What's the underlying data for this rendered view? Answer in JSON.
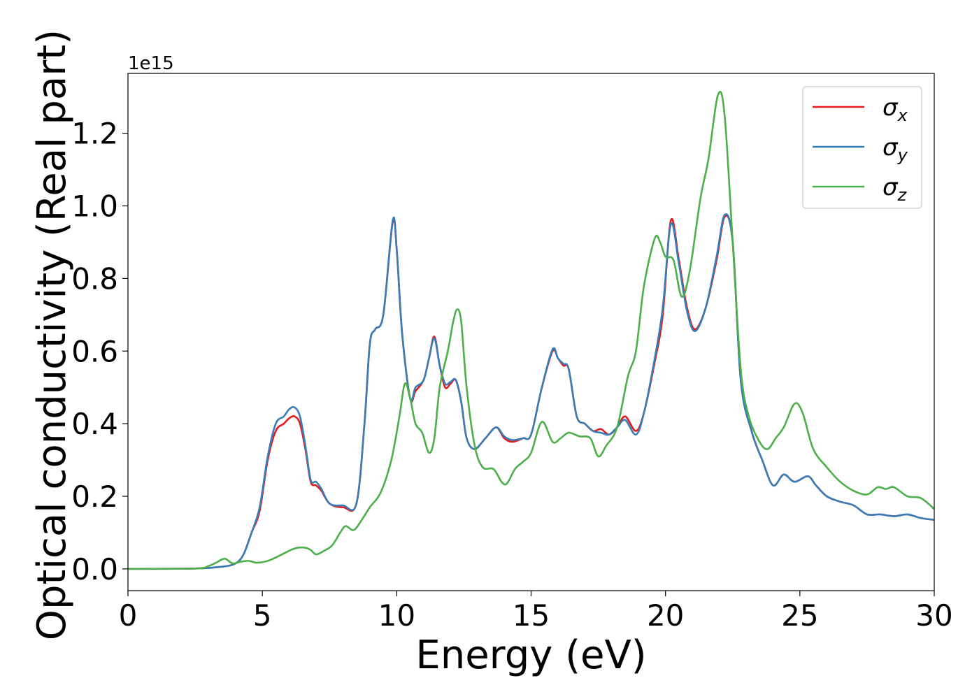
{
  "chart_data": {
    "type": "line",
    "xlabel": "Energy (eV)",
    "ylabel": "Optical conductivity (Real part)",
    "y_offset_label": "1e15",
    "xlim": [
      0,
      30
    ],
    "ylim": [
      -0.06,
      1.365
    ],
    "y_scale_factor": 1000000000000000.0,
    "xticks": [
      0,
      5,
      10,
      15,
      20,
      25,
      30
    ],
    "xtick_labels": [
      "0",
      "5",
      "10",
      "15",
      "20",
      "25",
      "30"
    ],
    "yticks": [
      0.0,
      0.2,
      0.4,
      0.6,
      0.8,
      1.0,
      1.2
    ],
    "ytick_labels": [
      "0.0",
      "0.2",
      "0.4",
      "0.6",
      "0.8",
      "1.0",
      "1.2"
    ],
    "grid": false,
    "legend_position": "top-right",
    "series": [
      {
        "name": "σx",
        "symbol": "σ",
        "subscript": "x",
        "color": "#e41a1c",
        "points": [
          [
            0,
            0
          ],
          [
            2.5,
            0.001
          ],
          [
            3.5,
            0.006
          ],
          [
            4.0,
            0.015
          ],
          [
            4.3,
            0.04
          ],
          [
            4.6,
            0.1
          ],
          [
            4.9,
            0.16
          ],
          [
            5.2,
            0.3
          ],
          [
            5.5,
            0.38
          ],
          [
            5.8,
            0.4
          ],
          [
            6.0,
            0.415
          ],
          [
            6.2,
            0.42
          ],
          [
            6.4,
            0.4
          ],
          [
            6.6,
            0.33
          ],
          [
            6.8,
            0.24
          ],
          [
            7.0,
            0.23
          ],
          [
            7.2,
            0.215
          ],
          [
            7.5,
            0.18
          ],
          [
            8.0,
            0.17
          ],
          [
            8.5,
            0.18
          ],
          [
            8.8,
            0.4
          ],
          [
            9.0,
            0.62
          ],
          [
            9.2,
            0.66
          ],
          [
            9.5,
            0.7
          ],
          [
            9.85,
            0.955
          ],
          [
            10.0,
            0.88
          ],
          [
            10.2,
            0.65
          ],
          [
            10.5,
            0.47
          ],
          [
            10.7,
            0.49
          ],
          [
            11.0,
            0.52
          ],
          [
            11.2,
            0.58
          ],
          [
            11.4,
            0.64
          ],
          [
            11.6,
            0.56
          ],
          [
            11.8,
            0.5
          ],
          [
            12.0,
            0.51
          ],
          [
            12.2,
            0.52
          ],
          [
            12.4,
            0.46
          ],
          [
            12.6,
            0.36
          ],
          [
            12.9,
            0.33
          ],
          [
            13.3,
            0.36
          ],
          [
            13.7,
            0.39
          ],
          [
            14.0,
            0.36
          ],
          [
            14.3,
            0.35
          ],
          [
            14.7,
            0.36
          ],
          [
            15.0,
            0.37
          ],
          [
            15.4,
            0.5
          ],
          [
            15.8,
            0.6
          ],
          [
            16.0,
            0.58
          ],
          [
            16.2,
            0.56
          ],
          [
            16.4,
            0.55
          ],
          [
            16.7,
            0.42
          ],
          [
            17.0,
            0.4
          ],
          [
            17.3,
            0.38
          ],
          [
            17.6,
            0.385
          ],
          [
            17.9,
            0.37
          ],
          [
            18.2,
            0.39
          ],
          [
            18.5,
            0.42
          ],
          [
            18.9,
            0.38
          ],
          [
            19.2,
            0.43
          ],
          [
            19.6,
            0.57
          ],
          [
            19.9,
            0.7
          ],
          [
            20.2,
            0.96
          ],
          [
            20.5,
            0.85
          ],
          [
            20.8,
            0.72
          ],
          [
            21.1,
            0.66
          ],
          [
            21.5,
            0.72
          ],
          [
            21.9,
            0.85
          ],
          [
            22.2,
            0.97
          ],
          [
            22.5,
            0.9
          ],
          [
            22.8,
            0.52
          ],
          [
            23.2,
            0.38
          ],
          [
            23.6,
            0.3
          ],
          [
            24.0,
            0.23
          ],
          [
            24.4,
            0.26
          ],
          [
            24.8,
            0.24
          ],
          [
            25.3,
            0.255
          ],
          [
            25.6,
            0.23
          ],
          [
            26.0,
            0.2
          ],
          [
            26.5,
            0.185
          ],
          [
            27.0,
            0.175
          ],
          [
            27.5,
            0.15
          ],
          [
            28.0,
            0.15
          ],
          [
            28.5,
            0.145
          ],
          [
            29.0,
            0.15
          ],
          [
            29.5,
            0.14
          ],
          [
            30.0,
            0.135
          ]
        ]
      },
      {
        "name": "σy",
        "symbol": "σ",
        "subscript": "y",
        "color": "#377eb8",
        "points": [
          [
            0,
            0
          ],
          [
            2.5,
            0.001
          ],
          [
            3.5,
            0.006
          ],
          [
            4.0,
            0.015
          ],
          [
            4.3,
            0.04
          ],
          [
            4.6,
            0.1
          ],
          [
            4.9,
            0.17
          ],
          [
            5.2,
            0.31
          ],
          [
            5.5,
            0.4
          ],
          [
            5.8,
            0.42
          ],
          [
            6.0,
            0.44
          ],
          [
            6.2,
            0.445
          ],
          [
            6.4,
            0.42
          ],
          [
            6.6,
            0.34
          ],
          [
            6.8,
            0.245
          ],
          [
            7.0,
            0.24
          ],
          [
            7.2,
            0.22
          ],
          [
            7.5,
            0.18
          ],
          [
            8.0,
            0.175
          ],
          [
            8.5,
            0.18
          ],
          [
            8.8,
            0.4
          ],
          [
            9.0,
            0.62
          ],
          [
            9.2,
            0.66
          ],
          [
            9.5,
            0.7
          ],
          [
            9.85,
            0.96
          ],
          [
            10.0,
            0.88
          ],
          [
            10.2,
            0.65
          ],
          [
            10.5,
            0.47
          ],
          [
            10.7,
            0.5
          ],
          [
            11.0,
            0.52
          ],
          [
            11.2,
            0.58
          ],
          [
            11.4,
            0.635
          ],
          [
            11.6,
            0.56
          ],
          [
            11.8,
            0.51
          ],
          [
            12.0,
            0.515
          ],
          [
            12.2,
            0.52
          ],
          [
            12.4,
            0.46
          ],
          [
            12.6,
            0.36
          ],
          [
            12.9,
            0.33
          ],
          [
            13.3,
            0.36
          ],
          [
            13.7,
            0.39
          ],
          [
            14.0,
            0.365
          ],
          [
            14.3,
            0.355
          ],
          [
            14.7,
            0.36
          ],
          [
            15.0,
            0.37
          ],
          [
            15.4,
            0.5
          ],
          [
            15.8,
            0.605
          ],
          [
            16.0,
            0.58
          ],
          [
            16.2,
            0.565
          ],
          [
            16.4,
            0.55
          ],
          [
            16.7,
            0.42
          ],
          [
            17.0,
            0.4
          ],
          [
            17.3,
            0.38
          ],
          [
            17.6,
            0.375
          ],
          [
            17.9,
            0.37
          ],
          [
            18.2,
            0.39
          ],
          [
            18.5,
            0.41
          ],
          [
            18.9,
            0.37
          ],
          [
            19.2,
            0.43
          ],
          [
            19.6,
            0.58
          ],
          [
            19.9,
            0.72
          ],
          [
            20.2,
            0.95
          ],
          [
            20.5,
            0.84
          ],
          [
            20.8,
            0.71
          ],
          [
            21.1,
            0.655
          ],
          [
            21.5,
            0.72
          ],
          [
            21.9,
            0.86
          ],
          [
            22.2,
            0.975
          ],
          [
            22.5,
            0.9
          ],
          [
            22.8,
            0.52
          ],
          [
            23.2,
            0.38
          ],
          [
            23.6,
            0.3
          ],
          [
            24.0,
            0.23
          ],
          [
            24.4,
            0.26
          ],
          [
            24.8,
            0.24
          ],
          [
            25.3,
            0.255
          ],
          [
            25.6,
            0.23
          ],
          [
            26.0,
            0.2
          ],
          [
            26.5,
            0.185
          ],
          [
            27.0,
            0.175
          ],
          [
            27.5,
            0.15
          ],
          [
            28.0,
            0.15
          ],
          [
            28.5,
            0.145
          ],
          [
            29.0,
            0.15
          ],
          [
            29.5,
            0.14
          ],
          [
            30.0,
            0.135
          ]
        ]
      },
      {
        "name": "σz",
        "symbol": "σ",
        "subscript": "z",
        "color": "#4daf4a",
        "points": [
          [
            0,
            0
          ],
          [
            2.5,
            0.001
          ],
          [
            3.0,
            0.008
          ],
          [
            3.3,
            0.018
          ],
          [
            3.6,
            0.028
          ],
          [
            3.9,
            0.015
          ],
          [
            4.2,
            0.02
          ],
          [
            4.5,
            0.022
          ],
          [
            4.8,
            0.017
          ],
          [
            5.2,
            0.022
          ],
          [
            5.6,
            0.035
          ],
          [
            6.0,
            0.05
          ],
          [
            6.3,
            0.058
          ],
          [
            6.6,
            0.058
          ],
          [
            6.8,
            0.052
          ],
          [
            7.0,
            0.04
          ],
          [
            7.3,
            0.05
          ],
          [
            7.6,
            0.065
          ],
          [
            7.9,
            0.1
          ],
          [
            8.1,
            0.118
          ],
          [
            8.4,
            0.107
          ],
          [
            8.7,
            0.135
          ],
          [
            9.0,
            0.17
          ],
          [
            9.4,
            0.21
          ],
          [
            9.8,
            0.3
          ],
          [
            10.1,
            0.42
          ],
          [
            10.3,
            0.51
          ],
          [
            10.5,
            0.47
          ],
          [
            10.7,
            0.4
          ],
          [
            10.95,
            0.375
          ],
          [
            11.2,
            0.32
          ],
          [
            11.4,
            0.36
          ],
          [
            11.6,
            0.5
          ],
          [
            11.9,
            0.6
          ],
          [
            12.1,
            0.68
          ],
          [
            12.25,
            0.715
          ],
          [
            12.4,
            0.68
          ],
          [
            12.6,
            0.5
          ],
          [
            12.9,
            0.34
          ],
          [
            13.2,
            0.28
          ],
          [
            13.6,
            0.275
          ],
          [
            13.9,
            0.24
          ],
          [
            14.1,
            0.235
          ],
          [
            14.4,
            0.275
          ],
          [
            14.7,
            0.295
          ],
          [
            15.0,
            0.32
          ],
          [
            15.4,
            0.405
          ],
          [
            15.8,
            0.35
          ],
          [
            16.1,
            0.36
          ],
          [
            16.4,
            0.375
          ],
          [
            16.8,
            0.365
          ],
          [
            17.2,
            0.36
          ],
          [
            17.5,
            0.31
          ],
          [
            17.8,
            0.34
          ],
          [
            18.2,
            0.39
          ],
          [
            18.6,
            0.53
          ],
          [
            18.9,
            0.6
          ],
          [
            19.2,
            0.78
          ],
          [
            19.6,
            0.91
          ],
          [
            19.8,
            0.9
          ],
          [
            20.0,
            0.86
          ],
          [
            20.3,
            0.85
          ],
          [
            20.6,
            0.75
          ],
          [
            20.9,
            0.82
          ],
          [
            21.3,
            1.02
          ],
          [
            21.6,
            1.13
          ],
          [
            21.95,
            1.305
          ],
          [
            22.2,
            1.25
          ],
          [
            22.5,
            0.9
          ],
          [
            22.8,
            0.55
          ],
          [
            23.1,
            0.42
          ],
          [
            23.5,
            0.35
          ],
          [
            23.8,
            0.33
          ],
          [
            24.1,
            0.36
          ],
          [
            24.4,
            0.39
          ],
          [
            24.8,
            0.455
          ],
          [
            25.1,
            0.43
          ],
          [
            25.5,
            0.33
          ],
          [
            26.0,
            0.28
          ],
          [
            26.5,
            0.24
          ],
          [
            27.0,
            0.215
          ],
          [
            27.5,
            0.205
          ],
          [
            27.9,
            0.225
          ],
          [
            28.2,
            0.22
          ],
          [
            28.5,
            0.225
          ],
          [
            29.0,
            0.2
          ],
          [
            29.5,
            0.195
          ],
          [
            30.0,
            0.165
          ]
        ]
      }
    ]
  }
}
